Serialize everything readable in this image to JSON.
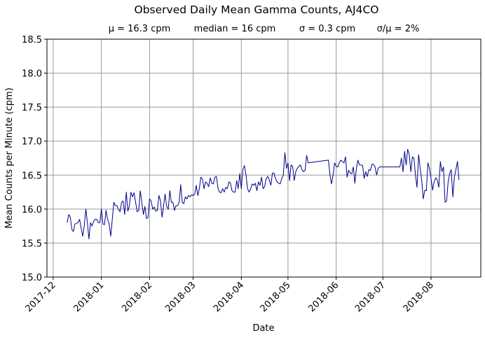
{
  "chart_data": {
    "type": "line",
    "title": "Observed Daily Mean Gamma Counts, AJ4CO",
    "subtitle": [
      "μ = 16.3 cpm",
      "median = 16 cpm",
      "σ = 0.3 cpm",
      "σ/μ = 2%"
    ],
    "xlabel": "Date",
    "ylabel": "Mean Counts per Minute (cpm)",
    "xlim": [
      "2017-11-27",
      "2018-09-02"
    ],
    "ylim": [
      15.0,
      18.5
    ],
    "x_ticks": [
      "2017-12",
      "2018-01",
      "2018-02",
      "2018-03",
      "2018-04",
      "2018-05",
      "2018-06",
      "2018-07",
      "2018-08"
    ],
    "y_ticks": [
      "15.0",
      "15.5",
      "16.0",
      "16.5",
      "17.0",
      "17.5",
      "18.0",
      "18.5"
    ],
    "grid": true,
    "line_color": "#00008b",
    "series": [
      {
        "points": [
          [
            "2017-12-10",
            15.8
          ],
          [
            "2017-12-11",
            15.92
          ],
          [
            "2017-12-12",
            15.88
          ],
          [
            "2017-12-13",
            15.7
          ],
          [
            "2017-12-14",
            15.67
          ],
          [
            "2017-12-15",
            15.78
          ],
          [
            "2017-12-17",
            15.8
          ],
          [
            "2017-12-18",
            15.85
          ],
          [
            "2017-12-19",
            15.72
          ],
          [
            "2017-12-20",
            15.6
          ],
          [
            "2017-12-21",
            15.75
          ],
          [
            "2017-12-22",
            16.0
          ],
          [
            "2017-12-23",
            15.8
          ],
          [
            "2017-12-24",
            15.56
          ],
          [
            "2017-12-25",
            15.8
          ],
          [
            "2017-12-26",
            15.75
          ],
          [
            "2017-12-27",
            15.82
          ],
          [
            "2017-12-28",
            15.85
          ],
          [
            "2017-12-29",
            15.85
          ],
          [
            "2017-12-30",
            15.8
          ],
          [
            "2017-12-31",
            15.8
          ],
          [
            "2018-01-01",
            16.0
          ],
          [
            "2018-01-02",
            15.78
          ],
          [
            "2018-01-03",
            15.77
          ],
          [
            "2018-01-04",
            15.98
          ],
          [
            "2018-01-05",
            15.85
          ],
          [
            "2018-01-06",
            15.78
          ],
          [
            "2018-01-07",
            15.6
          ],
          [
            "2018-01-09",
            16.1
          ],
          [
            "2018-01-10",
            16.05
          ],
          [
            "2018-01-11",
            16.05
          ],
          [
            "2018-01-12",
            16.0
          ],
          [
            "2018-01-13",
            15.96
          ],
          [
            "2018-01-14",
            16.1
          ],
          [
            "2018-01-15",
            16.12
          ],
          [
            "2018-01-16",
            15.92
          ],
          [
            "2018-01-17",
            16.25
          ],
          [
            "2018-01-18",
            15.97
          ],
          [
            "2018-01-19",
            16.05
          ],
          [
            "2018-01-20",
            16.25
          ],
          [
            "2018-01-21",
            16.18
          ],
          [
            "2018-01-22",
            16.24
          ],
          [
            "2018-01-23",
            16.1
          ],
          [
            "2018-01-24",
            15.96
          ],
          [
            "2018-01-25",
            15.98
          ],
          [
            "2018-01-26",
            16.27
          ],
          [
            "2018-01-27",
            16.1
          ],
          [
            "2018-01-28",
            15.92
          ],
          [
            "2018-01-29",
            16.04
          ],
          [
            "2018-01-30",
            15.86
          ],
          [
            "2018-01-31",
            15.88
          ],
          [
            "2018-02-01",
            16.15
          ],
          [
            "2018-02-02",
            16.12
          ],
          [
            "2018-02-03",
            16.0
          ],
          [
            "2018-02-04",
            16.03
          ],
          [
            "2018-02-05",
            15.97
          ],
          [
            "2018-02-06",
            15.98
          ],
          [
            "2018-02-07",
            16.2
          ],
          [
            "2018-02-08",
            16.12
          ],
          [
            "2018-02-09",
            15.88
          ],
          [
            "2018-02-10",
            16.05
          ],
          [
            "2018-02-11",
            16.22
          ],
          [
            "2018-02-12",
            16.04
          ],
          [
            "2018-02-13",
            16.0
          ],
          [
            "2018-02-14",
            16.27
          ],
          [
            "2018-02-15",
            16.1
          ],
          [
            "2018-02-16",
            16.1
          ],
          [
            "2018-02-17",
            15.98
          ],
          [
            "2018-02-18",
            16.05
          ],
          [
            "2018-02-19",
            16.05
          ],
          [
            "2018-02-20",
            16.1
          ],
          [
            "2018-02-21",
            16.36
          ],
          [
            "2018-02-22",
            16.1
          ],
          [
            "2018-02-23",
            16.08
          ],
          [
            "2018-02-24",
            16.18
          ],
          [
            "2018-02-25",
            16.15
          ],
          [
            "2018-02-26",
            16.2
          ],
          [
            "2018-02-27",
            16.18
          ],
          [
            "2018-02-28",
            16.21
          ],
          [
            "2018-03-01",
            16.2
          ],
          [
            "2018-03-02",
            16.22
          ],
          [
            "2018-03-03",
            16.35
          ],
          [
            "2018-03-04",
            16.2
          ],
          [
            "2018-03-05",
            16.3
          ],
          [
            "2018-03-06",
            16.47
          ],
          [
            "2018-03-07",
            16.44
          ],
          [
            "2018-03-08",
            16.3
          ],
          [
            "2018-03-09",
            16.4
          ],
          [
            "2018-03-10",
            16.38
          ],
          [
            "2018-03-11",
            16.33
          ],
          [
            "2018-03-12",
            16.46
          ],
          [
            "2018-03-13",
            16.38
          ],
          [
            "2018-03-14",
            16.37
          ],
          [
            "2018-03-15",
            16.47
          ],
          [
            "2018-03-16",
            16.48
          ],
          [
            "2018-03-17",
            16.3
          ],
          [
            "2018-03-18",
            16.25
          ],
          [
            "2018-03-19",
            16.24
          ],
          [
            "2018-03-20",
            16.3
          ],
          [
            "2018-03-21",
            16.25
          ],
          [
            "2018-03-22",
            16.32
          ],
          [
            "2018-03-23",
            16.3
          ],
          [
            "2018-03-24",
            16.4
          ],
          [
            "2018-03-25",
            16.38
          ],
          [
            "2018-03-26",
            16.27
          ],
          [
            "2018-03-27",
            16.25
          ],
          [
            "2018-03-28",
            16.25
          ],
          [
            "2018-03-29",
            16.42
          ],
          [
            "2018-03-30",
            16.3
          ],
          [
            "2018-03-31",
            16.52
          ],
          [
            "2018-04-01",
            16.3
          ],
          [
            "2018-04-02",
            16.58
          ],
          [
            "2018-04-03",
            16.64
          ],
          [
            "2018-04-04",
            16.5
          ],
          [
            "2018-04-05",
            16.3
          ],
          [
            "2018-04-06",
            16.25
          ],
          [
            "2018-04-07",
            16.3
          ],
          [
            "2018-04-08",
            16.37
          ],
          [
            "2018-04-09",
            16.35
          ],
          [
            "2018-04-10",
            16.38
          ],
          [
            "2018-04-11",
            16.27
          ],
          [
            "2018-04-12",
            16.4
          ],
          [
            "2018-04-13",
            16.35
          ],
          [
            "2018-04-14",
            16.47
          ],
          [
            "2018-04-15",
            16.3
          ],
          [
            "2018-04-16",
            16.33
          ],
          [
            "2018-04-17",
            16.45
          ],
          [
            "2018-04-18",
            16.48
          ],
          [
            "2018-04-19",
            16.43
          ],
          [
            "2018-04-20",
            16.35
          ],
          [
            "2018-04-21",
            16.53
          ],
          [
            "2018-04-22",
            16.53
          ],
          [
            "2018-04-23",
            16.45
          ],
          [
            "2018-04-24",
            16.4
          ],
          [
            "2018-04-25",
            16.38
          ],
          [
            "2018-04-26",
            16.37
          ],
          [
            "2018-04-27",
            16.45
          ],
          [
            "2018-04-28",
            16.5
          ],
          [
            "2018-04-29",
            16.83
          ],
          [
            "2018-04-30",
            16.6
          ],
          [
            "2018-05-01",
            16.68
          ],
          [
            "2018-05-02",
            16.42
          ],
          [
            "2018-05-03",
            16.65
          ],
          [
            "2018-05-04",
            16.63
          ],
          [
            "2018-05-05",
            16.42
          ],
          [
            "2018-05-06",
            16.55
          ],
          [
            "2018-05-07",
            16.6
          ],
          [
            "2018-05-08",
            16.63
          ],
          [
            "2018-05-09",
            16.65
          ],
          [
            "2018-05-10",
            16.58
          ],
          [
            "2018-05-11",
            16.55
          ],
          [
            "2018-05-12",
            16.57
          ],
          [
            "2018-05-13",
            16.79
          ],
          [
            "2018-05-14",
            16.68
          ],
          [
            "2018-05-27",
            16.72
          ],
          [
            "2018-05-28",
            16.5
          ],
          [
            "2018-05-29",
            16.37
          ],
          [
            "2018-05-30",
            16.5
          ],
          [
            "2018-05-31",
            16.68
          ],
          [
            "2018-06-01",
            16.63
          ],
          [
            "2018-06-02",
            16.62
          ],
          [
            "2018-06-03",
            16.68
          ],
          [
            "2018-06-04",
            16.72
          ],
          [
            "2018-06-05",
            16.7
          ],
          [
            "2018-06-06",
            16.68
          ],
          [
            "2018-06-07",
            16.77
          ],
          [
            "2018-06-08",
            16.47
          ],
          [
            "2018-06-09",
            16.57
          ],
          [
            "2018-06-10",
            16.53
          ],
          [
            "2018-06-11",
            16.52
          ],
          [
            "2018-06-12",
            16.62
          ],
          [
            "2018-06-13",
            16.38
          ],
          [
            "2018-06-14",
            16.6
          ],
          [
            "2018-06-15",
            16.72
          ],
          [
            "2018-06-16",
            16.65
          ],
          [
            "2018-06-17",
            16.65
          ],
          [
            "2018-06-18",
            16.64
          ],
          [
            "2018-06-19",
            16.45
          ],
          [
            "2018-06-20",
            16.55
          ],
          [
            "2018-06-21",
            16.48
          ],
          [
            "2018-06-22",
            16.58
          ],
          [
            "2018-06-23",
            16.57
          ],
          [
            "2018-06-24",
            16.66
          ],
          [
            "2018-06-25",
            16.66
          ],
          [
            "2018-06-26",
            16.62
          ],
          [
            "2018-06-27",
            16.5
          ],
          [
            "2018-06-28",
            16.6
          ],
          [
            "2018-06-29",
            16.62
          ],
          [
            "2018-07-12",
            16.62
          ],
          [
            "2018-07-13",
            16.75
          ],
          [
            "2018-07-14",
            16.55
          ],
          [
            "2018-07-15",
            16.85
          ],
          [
            "2018-07-16",
            16.65
          ],
          [
            "2018-07-17",
            16.88
          ],
          [
            "2018-07-18",
            16.8
          ],
          [
            "2018-07-19",
            16.55
          ],
          [
            "2018-07-20",
            16.77
          ],
          [
            "2018-07-21",
            16.75
          ],
          [
            "2018-07-22",
            16.5
          ],
          [
            "2018-07-23",
            16.32
          ],
          [
            "2018-07-24",
            16.8
          ],
          [
            "2018-07-25",
            16.6
          ],
          [
            "2018-07-26",
            16.42
          ],
          [
            "2018-07-27",
            16.15
          ],
          [
            "2018-07-28",
            16.28
          ],
          [
            "2018-07-29",
            16.27
          ],
          [
            "2018-07-30",
            16.68
          ],
          [
            "2018-07-31",
            16.6
          ],
          [
            "2018-08-01",
            16.45
          ],
          [
            "2018-08-02",
            16.28
          ],
          [
            "2018-08-03",
            16.4
          ],
          [
            "2018-08-04",
            16.46
          ],
          [
            "2018-08-05",
            16.43
          ],
          [
            "2018-08-06",
            16.32
          ],
          [
            "2018-08-07",
            16.7
          ],
          [
            "2018-08-08",
            16.55
          ],
          [
            "2018-08-09",
            16.62
          ],
          [
            "2018-08-10",
            16.1
          ],
          [
            "2018-08-11",
            16.12
          ],
          [
            "2018-08-12",
            16.4
          ],
          [
            "2018-08-13",
            16.52
          ],
          [
            "2018-08-14",
            16.58
          ],
          [
            "2018-08-15",
            16.18
          ],
          [
            "2018-08-16",
            16.47
          ],
          [
            "2018-08-17",
            16.58
          ],
          [
            "2018-08-18",
            16.7
          ],
          [
            "2018-08-19",
            16.43
          ]
        ]
      }
    ]
  }
}
